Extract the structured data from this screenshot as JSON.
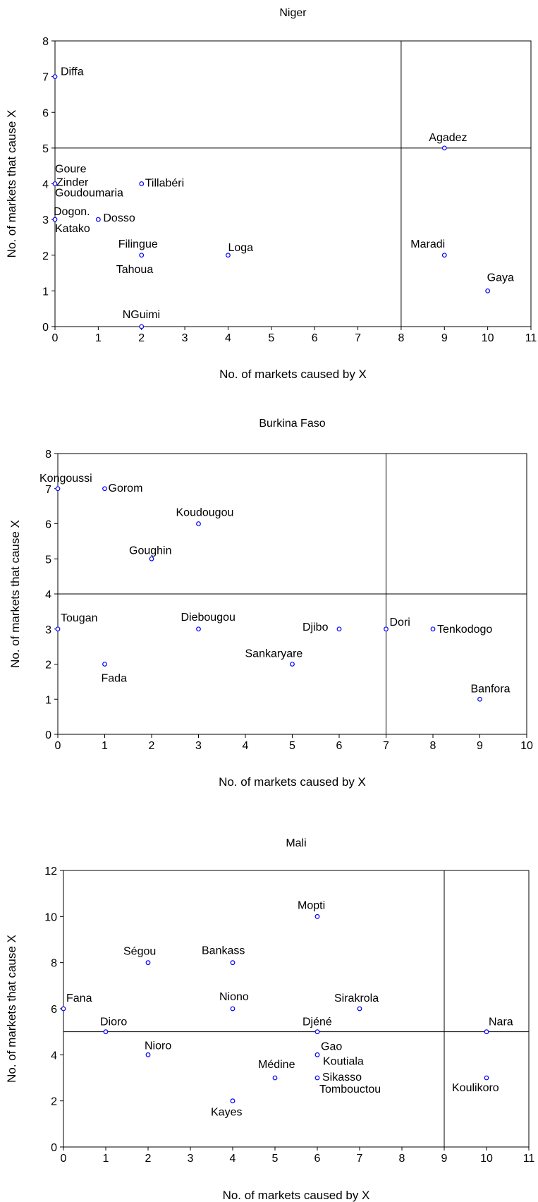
{
  "chart_data": [
    {
      "type": "scatter",
      "title": "Niger",
      "xlabel": "No. of markets caused by X",
      "ylabel": "No. of markets that cause X",
      "xlim": [
        0,
        11
      ],
      "ylim": [
        0,
        8
      ],
      "xticks": [
        0,
        1,
        2,
        3,
        4,
        5,
        6,
        7,
        8,
        9,
        10,
        11
      ],
      "yticks": [
        0,
        1,
        2,
        3,
        4,
        5,
        6,
        7,
        8
      ],
      "grid": false,
      "reference_lines": {
        "x": 8,
        "y": 5
      },
      "point_color": "#0000ff",
      "points": [
        {
          "label": "Diffa",
          "x": 0,
          "y": 7
        },
        {
          "label": "Agadez",
          "x": 9,
          "y": 5
        },
        {
          "label": "Goure",
          "x": 0,
          "y": 4
        },
        {
          "label": "Zinder",
          "x": 0,
          "y": 4
        },
        {
          "label": "Goudoumaria",
          "x": 0,
          "y": 4
        },
        {
          "label": "Tillabéri",
          "x": 2,
          "y": 4
        },
        {
          "label": "Dogon.",
          "x": 0,
          "y": 3
        },
        {
          "label": "Katako",
          "x": 0,
          "y": 3
        },
        {
          "label": "Dosso",
          "x": 1,
          "y": 3
        },
        {
          "label": "Filingue",
          "x": 2,
          "y": 2
        },
        {
          "label": "Tahoua",
          "x": 2,
          "y": 2
        },
        {
          "label": "Loga",
          "x": 4,
          "y": 2
        },
        {
          "label": "Maradi",
          "x": 9,
          "y": 2
        },
        {
          "label": "Gaya",
          "x": 10,
          "y": 1
        },
        {
          "label": "NGuimi",
          "x": 2,
          "y": 0
        }
      ]
    },
    {
      "type": "scatter",
      "title": "Burkina Faso",
      "xlabel": "No. of markets caused by X",
      "ylabel": "No. of markets that cause X",
      "xlim": [
        0,
        10
      ],
      "ylim": [
        0,
        8
      ],
      "xticks": [
        0,
        1,
        2,
        3,
        4,
        5,
        6,
        7,
        8,
        9,
        10
      ],
      "yticks": [
        0,
        1,
        2,
        3,
        4,
        5,
        6,
        7,
        8
      ],
      "grid": false,
      "reference_lines": {
        "x": 7,
        "y": 4
      },
      "point_color": "#0000ff",
      "points": [
        {
          "label": "Kongoussi",
          "x": 0,
          "y": 7
        },
        {
          "label": "Gorom",
          "x": 1,
          "y": 7
        },
        {
          "label": "Koudougou",
          "x": 3,
          "y": 6
        },
        {
          "label": "Goughin",
          "x": 2,
          "y": 5
        },
        {
          "label": "Tougan",
          "x": 0,
          "y": 3
        },
        {
          "label": "Diebougou",
          "x": 3,
          "y": 3
        },
        {
          "label": "Djibo",
          "x": 6,
          "y": 3
        },
        {
          "label": "Dori",
          "x": 7,
          "y": 3
        },
        {
          "label": "Tenkodogo",
          "x": 8,
          "y": 3
        },
        {
          "label": "Fada",
          "x": 1,
          "y": 2
        },
        {
          "label": "Sankaryare",
          "x": 5,
          "y": 2
        },
        {
          "label": "Banfora",
          "x": 9,
          "y": 1
        }
      ]
    },
    {
      "type": "scatter",
      "title": "Mali",
      "xlabel": "No. of markets caused by X",
      "ylabel": "No. of markets that cause X",
      "xlim": [
        0,
        11
      ],
      "ylim": [
        0,
        12
      ],
      "xticks": [
        0,
        1,
        2,
        3,
        4,
        5,
        6,
        7,
        8,
        9,
        10,
        11
      ],
      "yticks": [
        0,
        2,
        4,
        6,
        8,
        10,
        12
      ],
      "grid": false,
      "reference_lines": {
        "x": 9,
        "y": 5
      },
      "point_color": "#0000ff",
      "points": [
        {
          "label": "Mopti",
          "x": 6,
          "y": 10
        },
        {
          "label": "Ségou",
          "x": 2,
          "y": 8
        },
        {
          "label": "Bankass",
          "x": 4,
          "y": 8
        },
        {
          "label": "Fana",
          "x": 0,
          "y": 6
        },
        {
          "label": "Niono",
          "x": 4,
          "y": 6
        },
        {
          "label": "Sirakrola",
          "x": 7,
          "y": 6
        },
        {
          "label": "Dioro",
          "x": 1,
          "y": 5
        },
        {
          "label": "Djéné",
          "x": 6,
          "y": 5
        },
        {
          "label": "Nara",
          "x": 10,
          "y": 5
        },
        {
          "label": "Nioro",
          "x": 2,
          "y": 4
        },
        {
          "label": "Gao",
          "x": 6,
          "y": 4
        },
        {
          "label": "Koutiala",
          "x": 6,
          "y": 4
        },
        {
          "label": "Médine",
          "x": 5,
          "y": 3
        },
        {
          "label": "Sikasso",
          "x": 6,
          "y": 3
        },
        {
          "label": "Tombouctou",
          "x": 6,
          "y": 3
        },
        {
          "label": "Koulikoro",
          "x": 10,
          "y": 3
        },
        {
          "label": "Kayes",
          "x": 4,
          "y": 2
        }
      ]
    }
  ]
}
